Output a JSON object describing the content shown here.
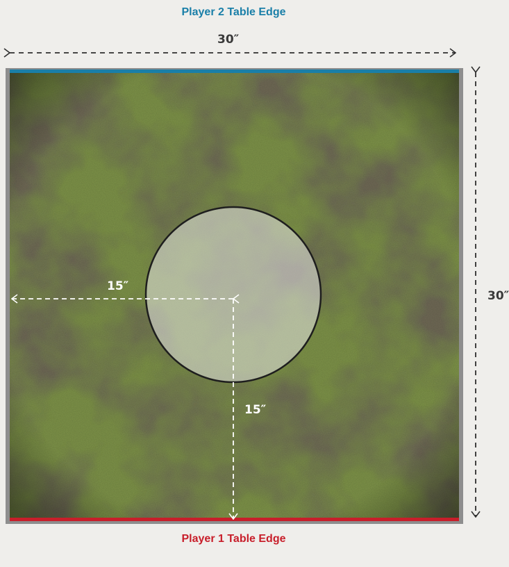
{
  "labels": {
    "player2_edge": "Player 2 Table Edge",
    "player1_edge": "Player 1 Table Edge"
  },
  "dimensions": {
    "table_width": "30″",
    "table_depth": "30″",
    "to_left_edge": "15″",
    "to_bottom_edge": "15″"
  },
  "colors": {
    "player2": "#1a7fa8",
    "player1": "#c81e2a",
    "table_frame": "#8e8e8e",
    "objective_circle_fill": "#e6e6e6",
    "objective_circle_stroke": "#1e1e1e"
  }
}
